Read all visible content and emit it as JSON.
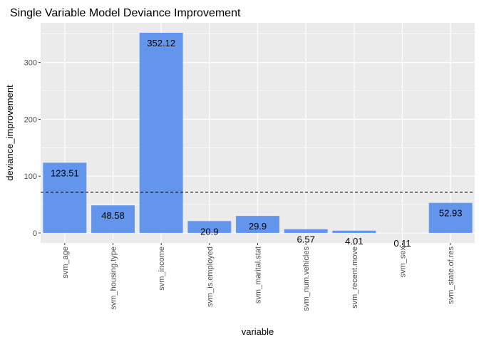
{
  "chart_data": {
    "type": "bar",
    "title": "Single Variable Model Deviance Improvement",
    "xlabel": "variable",
    "ylabel": "deviance_improvement",
    "categories": [
      "svm_age",
      "svm_housing.type",
      "svm_income",
      "svm_is.employed",
      "svm_marital.stat",
      "svm_num.vehicles",
      "svm_recent.move",
      "svm_sex",
      "svm_state.of.res"
    ],
    "values": [
      123.51,
      48.58,
      352.12,
      20.9,
      29.9,
      6.57,
      4.01,
      0.11,
      52.93
    ],
    "data_labels": [
      "123.51",
      "48.58",
      "352.12",
      "20.9",
      "29.9",
      "6.57",
      "4.01",
      "0.11",
      "52.93"
    ],
    "ylim": [
      -17.6,
      369.7
    ],
    "yticks": [
      0,
      100,
      200,
      300
    ],
    "reference_line": {
      "y": 71.5,
      "style": "dashed",
      "color": "#000000"
    },
    "bar_color": "#6495ED",
    "panel_background": "#EBEBEB",
    "grid": true,
    "legend": "none"
  }
}
